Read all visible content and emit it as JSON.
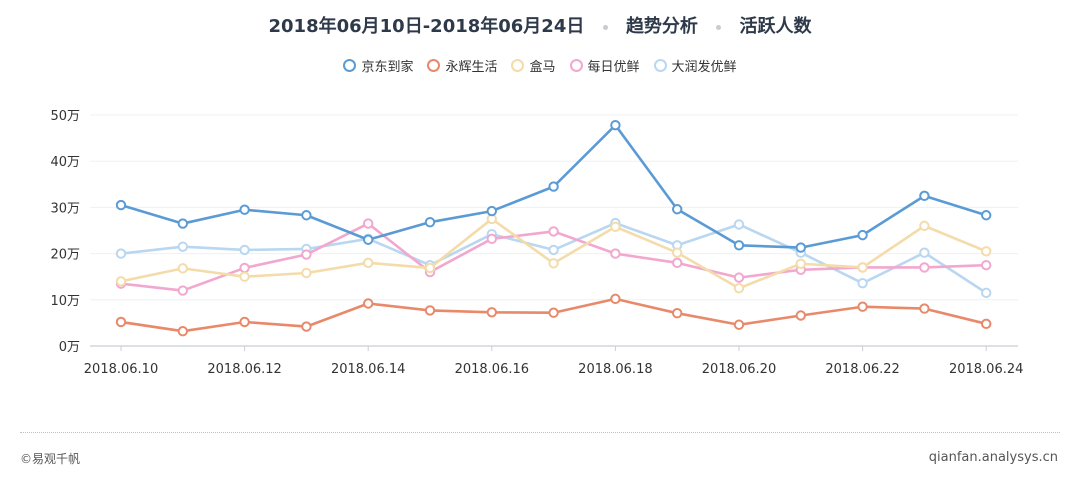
{
  "header": {
    "date_range": "2018年06月10日-2018年06月24日",
    "section": "趋势分析",
    "metric": "活跃人数"
  },
  "footer": {
    "copyright": "©易观千帆",
    "site": "qianfan.analysys.cn"
  },
  "chart_data": {
    "type": "line",
    "ylim": [
      0,
      50
    ],
    "y_ticks": [
      "0万",
      "10万",
      "20万",
      "30万",
      "40万",
      "50万"
    ],
    "x_tick_labels": [
      "2018.06.10",
      "2018.06.12",
      "2018.06.14",
      "2018.06.16",
      "2018.06.18",
      "2018.06.20",
      "2018.06.22",
      "2018.06.24"
    ],
    "x": [
      "2018.06.10",
      "2018.06.11",
      "2018.06.12",
      "2018.06.13",
      "2018.06.14",
      "2018.06.15",
      "2018.06.16",
      "2018.06.17",
      "2018.06.18",
      "2018.06.19",
      "2018.06.20",
      "2018.06.21",
      "2018.06.22",
      "2018.06.23",
      "2018.06.24"
    ],
    "unit": "万",
    "legend_position": "top-center",
    "grid": "horizontal",
    "series": [
      {
        "name": "京东到家",
        "color": "#5b9bd5",
        "values": [
          30.5,
          26.5,
          29.5,
          28.3,
          23.0,
          26.8,
          29.2,
          34.5,
          47.8,
          29.6,
          21.8,
          21.3,
          24.0,
          32.5,
          28.3
        ]
      },
      {
        "name": "永辉生活",
        "color": "#e8896a",
        "values": [
          5.2,
          3.2,
          5.2,
          4.2,
          9.2,
          7.7,
          7.3,
          7.2,
          10.2,
          7.1,
          4.6,
          6.6,
          8.5,
          8.1,
          4.8
        ]
      },
      {
        "name": "盒马",
        "color": "#f3dca9",
        "values": [
          14.0,
          16.8,
          15.0,
          15.8,
          18.0,
          16.9,
          27.5,
          17.9,
          25.8,
          20.2,
          12.5,
          17.8,
          17.0,
          26.0,
          20.5
        ]
      },
      {
        "name": "每日优鲜",
        "color": "#f2a7cf",
        "values": [
          13.5,
          12.0,
          16.9,
          19.8,
          26.5,
          16.0,
          23.2,
          24.8,
          20.0,
          18.0,
          14.8,
          16.5,
          17.0,
          17.0,
          17.5
        ]
      },
      {
        "name": "大润发优鲜",
        "color": "#b9d7f0",
        "values": [
          20.0,
          21.5,
          20.8,
          21.0,
          23.2,
          17.5,
          24.2,
          20.8,
          26.6,
          21.8,
          26.3,
          20.2,
          13.6,
          20.2,
          11.5
        ]
      }
    ]
  }
}
